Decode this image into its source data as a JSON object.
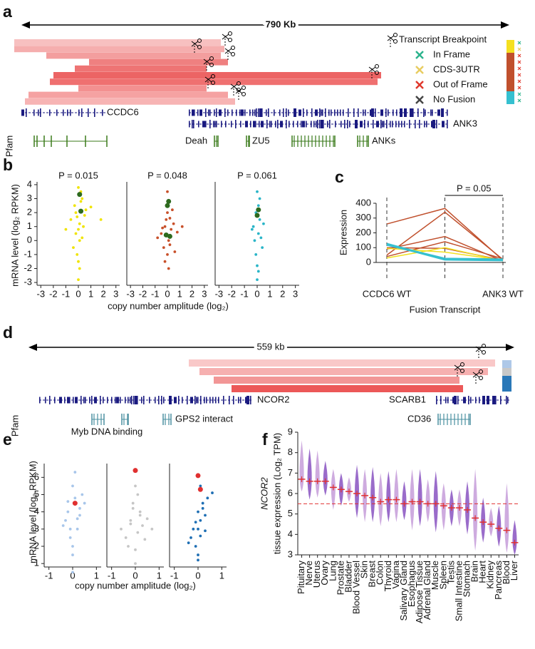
{
  "panel_labels": [
    "a",
    "b",
    "c",
    "d",
    "e",
    "f"
  ],
  "fusion_a": {
    "span_label": "790 Kb",
    "breakpoint_label": "Transcript Breakpoint",
    "legend": [
      {
        "label": "In Frame",
        "color": "#2bb38c"
      },
      {
        "label": "CDS-3UTR",
        "color": "#e8cc60"
      },
      {
        "label": "Out of Frame",
        "color": "#e0382c"
      },
      {
        "label": "No Fusion",
        "color": "#444444"
      }
    ],
    "genes": [
      "CCDC6",
      "ANK3"
    ],
    "pfam": "Pfam",
    "domains": [
      "Deah",
      "ZU5",
      "ANKs"
    ]
  },
  "fusion_d": {
    "span_label": "559 kb",
    "genes": [
      "NCOR2",
      "SCARB1"
    ],
    "pfam": "Pfam",
    "domains": [
      "Myb DNA binding",
      "GPS2 interact",
      "CD36"
    ]
  },
  "chart_data": [
    {
      "type": "scatter",
      "annotation": "P = 0.015",
      "ylabel": "mRNA level (log₂ RPKM)",
      "color": "#f0e400",
      "xlim": [
        -3.3,
        3.3
      ],
      "xticks": [
        -3,
        -2,
        -1,
        0,
        1,
        2,
        3
      ],
      "ylim": [
        -3.2,
        4.2
      ],
      "yticks": [
        -3,
        -2,
        -1,
        0,
        1,
        2,
        3,
        4
      ],
      "x": [
        -0.6,
        -0.3,
        -0.2,
        -0.1,
        0,
        0,
        0.1,
        0.2,
        0.3,
        0.5,
        -0.4,
        0.1,
        0.0,
        0.2,
        -0.2,
        0.4,
        0.6,
        1.0,
        1.8,
        -1.0,
        0.0,
        0.1,
        -0.1,
        0.3
      ],
      "y": [
        1.5,
        2.5,
        0.5,
        -1.0,
        3.8,
        -2.8,
        1.2,
        2.8,
        0.2,
        1.8,
        -0.5,
        -2.0,
        0.8,
        3.5,
        2.0,
        1.0,
        2.2,
        2.4,
        1.5,
        0.8,
        -1.5,
        0.0,
        1.7,
        3.0
      ],
      "highlight": {
        "color": "#2d6a1e",
        "x": [
          0.1,
          0.2
        ],
        "y": [
          3.3,
          2.1
        ]
      }
    },
    {
      "type": "scatter",
      "annotation": "P = 0.048",
      "xlabel": "copy number amplitude (log₂)",
      "color": "#c8502a",
      "xlim": [
        -3.3,
        3.3
      ],
      "xticks": [
        -3,
        -2,
        -1,
        0,
        1,
        2,
        3
      ],
      "ylim": [
        -3.2,
        4.2
      ],
      "x": [
        -0.5,
        -0.3,
        -0.2,
        -0.1,
        0,
        0,
        0.1,
        0.2,
        0.3,
        0.5,
        0.8,
        1.2,
        -0.8,
        0.1,
        0.0,
        -0.2,
        0.4,
        0.2,
        0.6,
        -0.4
      ],
      "y": [
        0.5,
        -0.5,
        1.0,
        1.5,
        -1.0,
        2.0,
        0.0,
        -0.3,
        0.8,
        1.2,
        0.6,
        1.0,
        0.2,
        -2.0,
        3.5,
        -1.5,
        2.2,
        1.6,
        -0.8,
        0.9
      ],
      "highlight": {
        "color": "#2d6a1e",
        "x": [
          0.1,
          0.0,
          0.2,
          -0.1
        ],
        "y": [
          2.8,
          2.5,
          0.3,
          0.4
        ]
      }
    },
    {
      "type": "scatter",
      "annotation": "P = 0.061",
      "color": "#2ab5c8",
      "xlim": [
        -3.3,
        3.3
      ],
      "xticks": [
        -3,
        -2,
        -1,
        0,
        1,
        2,
        3
      ],
      "ylim": [
        -3.2,
        4.2
      ],
      "x": [
        -0.3,
        -0.2,
        -0.1,
        0,
        0,
        0.1,
        0.1,
        0.2,
        0.3,
        0.4,
        -0.4,
        0.0,
        0.2,
        -0.1,
        0.5,
        0.1
      ],
      "y": [
        1.0,
        0.0,
        -1.0,
        3.5,
        -2.8,
        2.5,
        0.5,
        1.5,
        0.2,
        -0.5,
        0.8,
        -1.8,
        3.0,
        2.0,
        1.2,
        -2.2
      ],
      "highlight": {
        "color": "#2d6a1e",
        "x": [
          0.1,
          0.0
        ],
        "y": [
          2.2,
          1.8
        ]
      }
    },
    {
      "type": "line",
      "ylabel": "Expression",
      "annotation": "P = 0.05",
      "categories": [
        "CCDC6 WT",
        "Fusion Transcript",
        "ANK3 WT"
      ],
      "ylim": [
        0,
        400
      ],
      "yticks": [
        0,
        100,
        200,
        300,
        400
      ],
      "series": [
        {
          "color": "#c0502d",
          "width": 1.5,
          "values": [
            260,
            365,
            15
          ]
        },
        {
          "color": "#c0502d",
          "width": 1.5,
          "values": [
            50,
            340,
            20
          ]
        },
        {
          "color": "#c0502d",
          "width": 1.5,
          "values": [
            90,
            175,
            10
          ]
        },
        {
          "color": "#c0502d",
          "width": 1.5,
          "values": [
            40,
            140,
            25
          ]
        },
        {
          "color": "#c0502d",
          "width": 1.5,
          "values": [
            100,
            95,
            15
          ]
        },
        {
          "color": "#f0e020",
          "width": 1.5,
          "values": [
            30,
            100,
            10
          ]
        },
        {
          "color": "#f0e020",
          "width": 1.5,
          "values": [
            95,
            70,
            15
          ]
        },
        {
          "color": "#35c0d0",
          "width": 3,
          "values": [
            125,
            20,
            15
          ]
        },
        {
          "color": "#35c0d0",
          "width": 3,
          "values": [
            120,
            25,
            20
          ]
        }
      ]
    },
    {
      "type": "scatter",
      "ylabel": "mRNA level (log₂ RPKM)",
      "color": "#a8c6ea",
      "xlim": [
        -1.2,
        1.2
      ],
      "xticks": [
        -1,
        0,
        1
      ],
      "ylim": [
        0.8,
        6.8
      ],
      "yticks": [
        1,
        2,
        3,
        4,
        5,
        6
      ],
      "x": [
        -0.3,
        -0.2,
        -0.1,
        0,
        0,
        0.1,
        0.2,
        0.3,
        0.4,
        -0.4,
        0.0,
        0.1,
        -0.1,
        0.2,
        0.5,
        -0.2,
        0.0,
        0.3
      ],
      "y": [
        3.5,
        4.0,
        3.0,
        5.5,
        2.0,
        4.8,
        3.6,
        4.2,
        5.0,
        3.2,
        0.5,
        6.3,
        2.5,
        3.0,
        4.5,
        4.6,
        1.5,
        3.8
      ],
      "highlight": {
        "color": "#e03030",
        "x": [
          0.1
        ],
        "y": [
          4.5
        ]
      }
    },
    {
      "type": "scatter",
      "xlabel": "copy number amplitude (log₂)",
      "color": "#c6c6c6",
      "xlim": [
        -1.2,
        1.2
      ],
      "xticks": [
        -1,
        0,
        1
      ],
      "ylim": [
        0.8,
        6.8
      ],
      "x": [
        -0.6,
        -0.4,
        -0.2,
        -0.1,
        0,
        0,
        0.1,
        0.2,
        0.3,
        0.5,
        0.7,
        -0.3,
        0.0,
        0.1,
        -0.1,
        0.4,
        0.2,
        -0.2
      ],
      "y": [
        3.0,
        2.5,
        3.5,
        4.5,
        1.0,
        5.5,
        2.8,
        4.0,
        3.2,
        3.6,
        3.0,
        2.0,
        1.8,
        5.0,
        4.2,
        2.4,
        3.8,
        3.3
      ],
      "highlight": {
        "color": "#e03030",
        "x": [
          0.0
        ],
        "y": [
          6.4
        ]
      }
    },
    {
      "type": "scatter",
      "color": "#1f6fb4",
      "xlim": [
        -1.2,
        1.2
      ],
      "xticks": [
        -1,
        0,
        1
      ],
      "ylim": [
        0.8,
        6.8
      ],
      "x": [
        -0.3,
        -0.2,
        -0.1,
        0,
        0,
        0.1,
        0.2,
        0.3,
        0.4,
        0.6,
        -0.4,
        0.0,
        0.1,
        -0.1,
        0.2,
        0.3,
        0.1,
        0.0
      ],
      "y": [
        2.5,
        3.0,
        2.0,
        4.0,
        1.5,
        3.5,
        4.5,
        3.8,
        4.8,
        5.1,
        2.2,
        3.0,
        2.6,
        3.4,
        4.2,
        2.9,
        5.5,
        1.2
      ],
      "highlight": {
        "color": "#e03030",
        "x": [
          0.0,
          0.1
        ],
        "y": [
          6.1,
          5.3
        ]
      }
    },
    {
      "type": "strip",
      "ylabel_gene": "NCOR2",
      "ylabel": "tissue expression (Log₂ TPM)",
      "colors": [
        "#c9a2dc",
        "#8f5cc4"
      ],
      "median_color": "#e03030",
      "ref_line": 5.5,
      "ylim": [
        3,
        9
      ],
      "yticks": [
        3,
        4,
        5,
        6,
        7,
        8,
        9
      ],
      "categories": [
        "Pituitary",
        "Nerve",
        "Uterus",
        "Ovary",
        "Lung",
        "Prostate",
        "Bladder",
        "Blood Vessel",
        "Skin",
        "Breast",
        "Colon",
        "Thyroid",
        "Vagina",
        "Salivary Gland",
        "Esophagus",
        "Adipose Tissue",
        "Adrenal Gland",
        "Muscle",
        "Spleen",
        "Testis",
        "Small Intestine",
        "Stomach",
        "Brain",
        "Heart",
        "Kidney",
        "Pancreas",
        "Blood",
        "Liver"
      ],
      "values": [
        6.7,
        6.6,
        6.6,
        6.6,
        6.3,
        6.2,
        6.1,
        6.0,
        5.9,
        5.8,
        5.6,
        5.7,
        5.7,
        5.5,
        5.6,
        5.6,
        5.5,
        5.5,
        5.4,
        5.3,
        5.3,
        5.2,
        4.8,
        4.6,
        4.5,
        4.3,
        4.2,
        3.6
      ],
      "ranges": [
        [
          6.1,
          8.6
        ],
        [
          5.7,
          8.2
        ],
        [
          5.8,
          8.1
        ],
        [
          5.9,
          7.6
        ],
        [
          5.2,
          7.2
        ],
        [
          5.4,
          7.0
        ],
        [
          5.6,
          6.8
        ],
        [
          4.8,
          7.4
        ],
        [
          4.6,
          7.2
        ],
        [
          4.6,
          7.3
        ],
        [
          4.4,
          7.0
        ],
        [
          4.6,
          7.1
        ],
        [
          4.6,
          7.2
        ],
        [
          4.7,
          6.6
        ],
        [
          4.2,
          7.2
        ],
        [
          4.4,
          7.2
        ],
        [
          4.6,
          6.7
        ],
        [
          4.1,
          7.1
        ],
        [
          4.2,
          6.5
        ],
        [
          4.4,
          6.2
        ],
        [
          4.4,
          6.2
        ],
        [
          4.0,
          6.6
        ],
        [
          3.2,
          7.2
        ],
        [
          3.6,
          5.8
        ],
        [
          3.9,
          5.3
        ],
        [
          3.4,
          5.4
        ],
        [
          3.1,
          6.5
        ],
        [
          3.0,
          4.7
        ]
      ]
    }
  ]
}
